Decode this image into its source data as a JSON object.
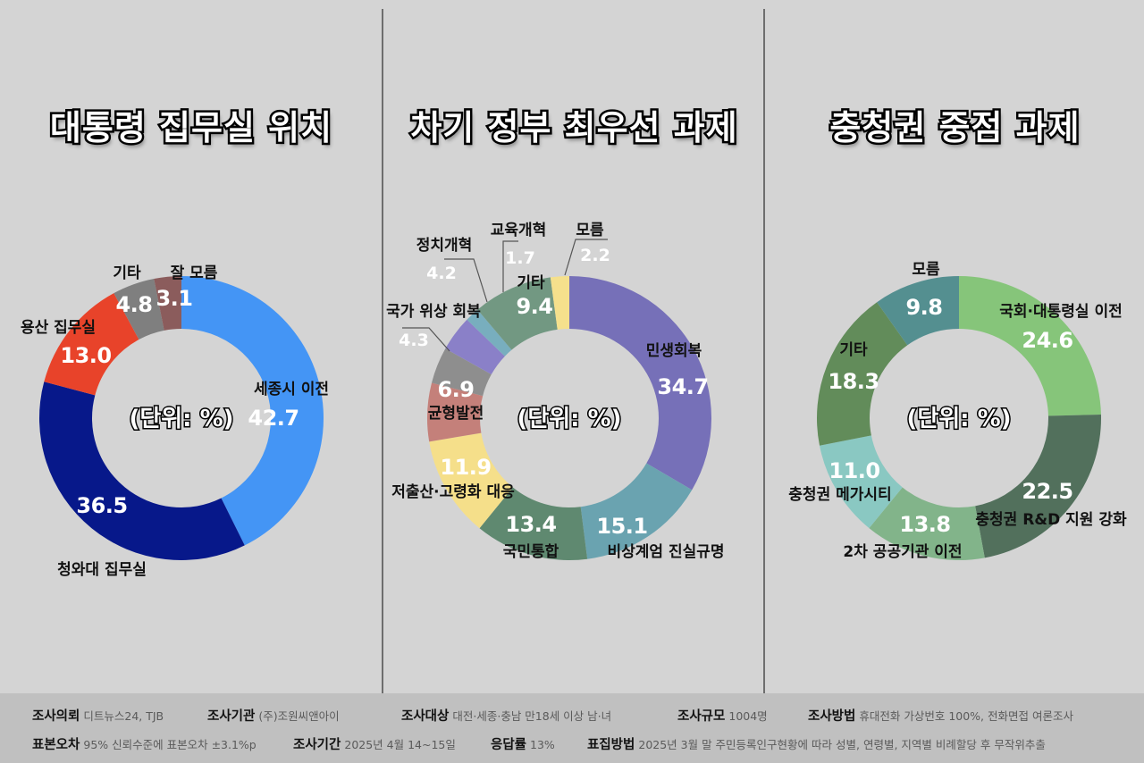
{
  "unit_label": "(단위: %)",
  "panels": [
    {
      "title": "대통령 집무실 위치"
    },
    {
      "title": "차기 정부 최우선 과제"
    },
    {
      "title": "충청권 중점 과제"
    }
  ],
  "chart_data": [
    {
      "type": "pie",
      "subtype": "donut",
      "title": "대통령 집무실 위치",
      "unit": "%",
      "categories": [
        "세종시 이전",
        "청와대 집무실",
        "용산 집무실",
        "기타",
        "잘 모름"
      ],
      "values": [
        42.7,
        36.5,
        13.0,
        4.8,
        3.1
      ],
      "value_labels": [
        "42.7",
        "36.5",
        "13.0",
        "4.8",
        "3.1"
      ],
      "colors": [
        "#4495f5",
        "#07188a",
        "#e8432a",
        "#7f7f7f",
        "#8b5c5c"
      ],
      "start": "12 o'clock, clockwise"
    },
    {
      "type": "pie",
      "subtype": "donut",
      "title": "차기 정부 최우선 과제",
      "unit": "%",
      "categories": [
        "민생회복",
        "비상계엄 진실규명",
        "국민통합",
        "저출산·고령화 대응",
        "균형발전",
        "국가 위상 회복",
        "정치개혁",
        "교육개혁",
        "기타",
        "모름"
      ],
      "values": [
        34.7,
        15.1,
        13.4,
        11.9,
        6.9,
        4.3,
        4.2,
        1.7,
        9.4,
        2.2
      ],
      "value_labels": [
        "34.7",
        "15.1",
        "13.4",
        "11.9",
        "6.9",
        "4.3",
        "4.2",
        "1.7",
        "9.4",
        "2.2"
      ],
      "colors": [
        "#7670b8",
        "#6aa3b0",
        "#5f8970",
        "#f5df8a",
        "#c4807a",
        "#8e8e8e",
        "#8a80c8",
        "#78aebe",
        "#729882",
        "#f5e08c"
      ],
      "start": "12 o'clock, clockwise"
    },
    {
      "type": "pie",
      "subtype": "donut",
      "title": "충청권 중점 과제",
      "unit": "%",
      "categories": [
        "국회·대통령실 이전",
        "충청권 R&D 지원 강화",
        "2차 공공기관 이전",
        "충청권 메가시티",
        "기타",
        "모름"
      ],
      "values": [
        24.6,
        22.5,
        13.8,
        11.0,
        18.3,
        9.8
      ],
      "value_labels": [
        "24.6",
        "22.5",
        "13.8",
        "11.0",
        "18.3",
        "9.8"
      ],
      "colors": [
        "#86c57a",
        "#52705c",
        "#82b48a",
        "#8ac8c2",
        "#628c5a",
        "#548f90"
      ],
      "start": "12 o'clock, clockwise"
    }
  ],
  "footer": {
    "row1": [
      {
        "key": "조사의뢰",
        "value": "디트뉴스24, TJB"
      },
      {
        "key": "조사기관",
        "value": "(주)조원씨앤아이"
      },
      {
        "key": "조사대상",
        "value": "대전·세종·충남 만18세 이상 남·녀"
      },
      {
        "key": "조사규모",
        "value": "1004명"
      },
      {
        "key": "조사방법",
        "value": "휴대전화 가상번호 100%, 전화면접 여론조사"
      }
    ],
    "row2": [
      {
        "key": "표본오차",
        "value": "95% 신뢰수준에 표본오차 ±3.1%p"
      },
      {
        "key": "조사기간",
        "value": "2025년 4월 14~15일"
      },
      {
        "key": "응답률",
        "value": "13%"
      },
      {
        "key": "표집방법",
        "value": "2025년 3월 말 주민등록인구현황에 따라 성별, 연령별, 지역별 비례할당 후 무작위추출"
      }
    ]
  }
}
